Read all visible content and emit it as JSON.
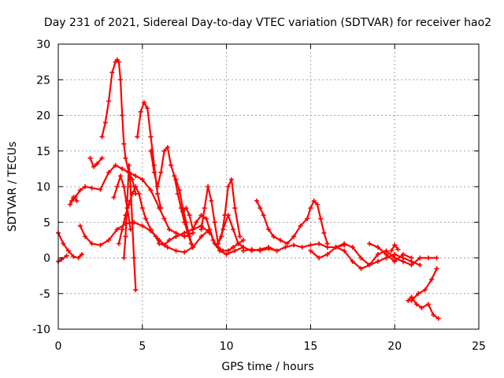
{
  "chart_data": {
    "type": "scatter",
    "title": "Day 231 of 2021, Sidereal Day-to-day VTEC variation (SDTVAR) for receiver hao2",
    "xlabel": "GPS time / hours",
    "ylabel": "SDTVAR / TECUs",
    "xlim": [
      0,
      25
    ],
    "ylim": [
      -10,
      30
    ],
    "xticks": [
      "0",
      "5",
      "10",
      "15",
      "20",
      "25"
    ],
    "yticks": [
      "-10",
      "-5",
      "0",
      "5",
      "10",
      "15",
      "20",
      "25",
      "30"
    ],
    "grid": true,
    "marker": "+",
    "color": "#ff0000",
    "series": [
      {
        "name": "trace-1",
        "x": [
          0.0,
          0.3,
          0.6,
          0.9,
          1.2,
          1.4
        ],
        "y": [
          3.5,
          2.0,
          1.0,
          0.2,
          0.0,
          0.5
        ]
      },
      {
        "name": "trace-2",
        "x": [
          0.0,
          0.2,
          0.5
        ],
        "y": [
          -0.5,
          -0.2,
          0.3
        ]
      },
      {
        "name": "trace-3",
        "x": [
          1.3,
          1.6,
          2.0,
          2.5,
          3.0,
          3.5,
          4.0,
          4.5,
          5.0,
          5.5,
          6.0,
          6.5,
          7.0,
          7.5,
          8.0,
          8.5,
          9.0,
          9.3,
          9.6,
          10.0,
          10.5,
          11.0
        ],
        "y": [
          4.5,
          3.0,
          2.0,
          1.8,
          2.5,
          4.0,
          4.8,
          5.0,
          4.5,
          3.8,
          2.5,
          1.5,
          1.0,
          0.8,
          1.5,
          3.0,
          4.0,
          2.0,
          1.0,
          0.5,
          1.0,
          1.5
        ]
      },
      {
        "name": "trace-4",
        "x": [
          0.8,
          1.0,
          1.3,
          1.6,
          2.0,
          2.5,
          3.0,
          3.4,
          3.8,
          4.2,
          4.6,
          5.0,
          5.5,
          6.0,
          6.3,
          6.6,
          7.0,
          7.5,
          8.0
        ],
        "y": [
          8.0,
          8.5,
          9.5,
          10.0,
          9.8,
          9.6,
          12.0,
          13.0,
          12.5,
          12.0,
          11.5,
          11.0,
          9.5,
          7.0,
          5.5,
          4.0,
          3.5,
          3.0,
          3.5
        ]
      },
      {
        "name": "trace-5",
        "x": [
          0.7,
          0.9,
          1.1
        ],
        "y": [
          7.5,
          8.5,
          8.0
        ]
      },
      {
        "name": "trace-6",
        "x": [
          1.9,
          2.1,
          2.3,
          2.6
        ],
        "y": [
          14.0,
          12.8,
          13.2,
          14.0
        ]
      },
      {
        "name": "trace-7",
        "x": [
          2.6,
          2.8,
          3.0,
          3.2,
          3.4,
          3.5,
          3.6,
          3.7,
          3.8,
          3.9,
          4.0,
          4.2,
          4.4,
          4.6
        ],
        "y": [
          17.0,
          19.0,
          22.0,
          26.0,
          27.5,
          27.8,
          27.5,
          25.0,
          20.0,
          16.0,
          14.0,
          12.0,
          11.0,
          9.0
        ]
      },
      {
        "name": "trace-8",
        "x": [
          3.6,
          3.8,
          4.0,
          4.2,
          4.4,
          4.6,
          4.8,
          5.0,
          5.2,
          5.5,
          5.8,
          6.0,
          6.3,
          6.6,
          7.0,
          7.5,
          8.0,
          8.5,
          9.0
        ],
        "y": [
          2.0,
          4.0,
          6.0,
          7.5,
          9.0,
          10.0,
          9.0,
          7.0,
          5.5,
          4.0,
          3.0,
          2.0,
          1.8,
          2.5,
          3.0,
          3.5,
          4.0,
          4.5,
          3.5
        ]
      },
      {
        "name": "trace-9",
        "x": [
          3.3,
          3.5,
          3.7,
          3.9,
          4.1,
          4.3
        ],
        "y": [
          8.5,
          10.0,
          11.5,
          10.0,
          7.0,
          4.0
        ]
      },
      {
        "name": "trace-10",
        "x": [
          3.9,
          4.0,
          4.1,
          4.2,
          4.3,
          4.4,
          4.5,
          4.6
        ],
        "y": [
          0.0,
          3.0,
          8.0,
          13.0,
          10.0,
          5.0,
          0.0,
          -4.5
        ]
      },
      {
        "name": "trace-11",
        "x": [
          4.7,
          4.9,
          5.1,
          5.3,
          5.5,
          5.7,
          5.9,
          6.1
        ],
        "y": [
          17.0,
          20.5,
          21.8,
          21.0,
          17.0,
          13.0,
          9.0,
          7.0
        ]
      },
      {
        "name": "trace-12",
        "x": [
          5.5,
          5.7,
          5.9,
          6.1,
          6.3,
          6.5,
          6.7,
          6.9,
          7.1,
          7.3,
          7.5,
          7.7,
          7.9
        ],
        "y": [
          15.0,
          12.0,
          10.0,
          12.0,
          15.0,
          15.5,
          13.0,
          11.5,
          9.0,
          7.0,
          5.0,
          3.5,
          2.0
        ]
      },
      {
        "name": "trace-13",
        "x": [
          7.0,
          7.2,
          7.4,
          7.6,
          7.8,
          8.0
        ],
        "y": [
          11.0,
          9.5,
          7.0,
          5.0,
          3.0,
          1.5
        ]
      },
      {
        "name": "trace-14",
        "x": [
          7.4,
          7.6,
          7.8,
          8.0,
          8.2,
          8.5,
          8.8,
          9.0,
          9.2,
          9.5,
          9.8,
          10.1,
          10.4,
          10.7,
          11.0
        ],
        "y": [
          6.5,
          7.0,
          6.0,
          4.0,
          5.0,
          6.0,
          5.5,
          4.0,
          2.5,
          1.5,
          1.0,
          1.0,
          1.5,
          2.0,
          2.5
        ]
      },
      {
        "name": "trace-15",
        "x": [
          8.5,
          8.7,
          8.9,
          9.1,
          9.3,
          9.5,
          9.7,
          9.9,
          10.1,
          10.3,
          10.5,
          10.8
        ],
        "y": [
          4.0,
          7.0,
          10.0,
          8.0,
          5.0,
          2.0,
          3.0,
          6.0,
          10.0,
          11.0,
          7.0,
          3.0
        ]
      },
      {
        "name": "trace-16",
        "x": [
          9.5,
          9.8,
          10.1,
          10.4,
          10.7,
          11.0,
          11.5,
          12.0,
          12.5,
          13.0
        ],
        "y": [
          2.0,
          4.0,
          6.0,
          4.0,
          2.0,
          1.5,
          1.0,
          1.2,
          1.5,
          1.0
        ]
      },
      {
        "name": "trace-17",
        "x": [
          11.0,
          11.5,
          12.0,
          12.5,
          13.0,
          13.5,
          14.0,
          14.5,
          15.0,
          15.5,
          16.0,
          16.5,
          17.0
        ],
        "y": [
          1.0,
          1.2,
          1.0,
          1.3,
          1.0,
          1.5,
          1.8,
          1.5,
          1.8,
          2.0,
          1.5,
          1.5,
          1.8
        ]
      },
      {
        "name": "trace-18",
        "x": [
          11.8,
          12.0,
          12.2,
          12.5,
          12.8,
          13.2,
          13.6,
          14.0,
          14.4,
          14.8,
          15.0,
          15.2,
          15.4,
          15.6,
          15.8,
          16.0
        ],
        "y": [
          8.0,
          7.0,
          6.0,
          4.0,
          3.0,
          2.5,
          2.0,
          3.0,
          4.5,
          5.5,
          7.0,
          8.0,
          7.5,
          5.5,
          3.5,
          2.0
        ]
      },
      {
        "name": "trace-19",
        "x": [
          15.0,
          15.5,
          16.0,
          16.5,
          17.0,
          17.5,
          18.0,
          18.5,
          19.0,
          19.5,
          20.0,
          20.5,
          21.0,
          21.5,
          22.0,
          22.5
        ],
        "y": [
          1.0,
          0.0,
          0.5,
          1.5,
          2.0,
          1.5,
          0.0,
          -1.0,
          0.5,
          1.0,
          0.0,
          -0.5,
          -1.0,
          0.0,
          0.0,
          0.0
        ]
      },
      {
        "name": "trace-20",
        "x": [
          16.5,
          17.0,
          17.5,
          18.0,
          18.5,
          19.0,
          19.5,
          20.0,
          20.5,
          21.0,
          21.5
        ],
        "y": [
          1.5,
          1.0,
          -0.5,
          -1.5,
          -1.0,
          -0.5,
          0.0,
          0.5,
          0.0,
          -0.5,
          -1.0
        ]
      },
      {
        "name": "trace-21",
        "x": [
          18.5,
          19.0,
          19.5,
          20.0,
          20.5,
          21.0
        ],
        "y": [
          2.0,
          1.5,
          0.5,
          -0.5,
          0.5,
          0.0
        ]
      },
      {
        "name": "trace-22",
        "x": [
          19.8,
          20.0,
          20.2
        ],
        "y": [
          1.0,
          1.8,
          1.2
        ]
      },
      {
        "name": "trace-23",
        "x": [
          20.8,
          21.0,
          21.3,
          21.6,
          22.0,
          22.3,
          22.6
        ],
        "y": [
          -6.0,
          -5.5,
          -6.5,
          -7.0,
          -6.5,
          -8.0,
          -8.5
        ]
      },
      {
        "name": "trace-24",
        "x": [
          21.0,
          21.4,
          21.8,
          22.2,
          22.5
        ],
        "y": [
          -6.0,
          -5.0,
          -4.5,
          -3.0,
          -1.5
        ]
      }
    ]
  }
}
